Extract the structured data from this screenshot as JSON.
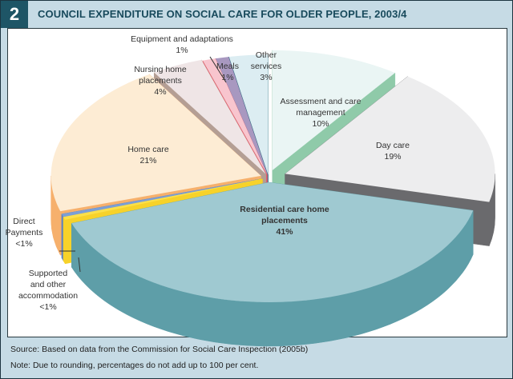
{
  "figure": {
    "number": "2",
    "title": "COUNCIL EXPENDITURE ON SOCIAL CARE FOR OLDER PEOPLE, 2003/4",
    "source": "Source: Based on data from the Commission for Social Care Inspection (2005b)",
    "note": "Note: Due to rounding, percentages do not add up to 100 per cent."
  },
  "chart_data": {
    "type": "pie",
    "style": "3d-exploded",
    "title": "COUNCIL EXPENDITURE ON SOCIAL CARE FOR OLDER PEOPLE, 2003/4",
    "start": "top",
    "direction": "clockwise",
    "slices": [
      {
        "name": "Assessment and care management",
        "label_lines": [
          "Assessment and care",
          "management"
        ],
        "pct_label": "10%",
        "value": 10,
        "top_color": "#eaf5f4",
        "side_color": "#8fcaa9"
      },
      {
        "name": "Day care",
        "label_lines": [
          "Day care"
        ],
        "pct_label": "19%",
        "value": 19,
        "top_color": "#ededee",
        "side_color": "#6a6a6d"
      },
      {
        "name": "Residential care home placements",
        "label_lines": [
          "Residential care home",
          "placements"
        ],
        "pct_label": "41%",
        "value": 41,
        "top_color": "#9fc9d1",
        "side_color": "#5e9ea8"
      },
      {
        "name": "Supported and other accommodation",
        "label_lines": [
          "Supported",
          "and other",
          "accommodation"
        ],
        "pct_label": "<1%",
        "value": 0.4,
        "top_color": "#fbe04a",
        "side_color": "#f7d22a"
      },
      {
        "name": "Direct Payments",
        "label_lines": [
          "Direct",
          "Payments"
        ],
        "pct_label": "<1%",
        "value": 0.4,
        "top_color": "#7b9fd6",
        "side_color": "#5a80c2"
      },
      {
        "name": "Home care",
        "label_lines": [
          "Home care"
        ],
        "pct_label": "21%",
        "value": 21,
        "top_color": "#fdecd4",
        "side_color": "#f6b06c"
      },
      {
        "name": "Nursing home placements",
        "label_lines": [
          "Nursing home",
          "placements"
        ],
        "pct_label": "4%",
        "value": 4,
        "top_color": "#efe5e6",
        "side_color": "#b49e94"
      },
      {
        "name": "Equipment and adaptations",
        "label_lines": [
          "Equipment and adaptations"
        ],
        "pct_label": "1%",
        "value": 1,
        "top_color": "#f8c5ce",
        "side_color": "#e0606c"
      },
      {
        "name": "Meals",
        "label_lines": [
          "Meals"
        ],
        "pct_label": "1%",
        "value": 1,
        "top_color": "#a898c0",
        "side_color": "#7f6aa4"
      },
      {
        "name": "Other services",
        "label_lines": [
          "Other",
          "services"
        ],
        "pct_label": "3%",
        "value": 3,
        "top_color": "#dcedf2",
        "side_color": "#2f7383"
      }
    ]
  }
}
